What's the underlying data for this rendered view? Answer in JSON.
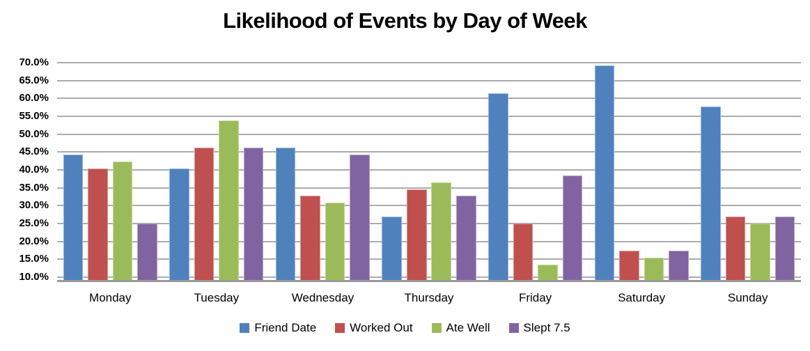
{
  "title": "Likelihood of Events by Day of Week",
  "chart_data": {
    "type": "bar",
    "title": "Likelihood of Events by Day of Week",
    "categories": [
      "Monday",
      "Tuesday",
      "Wednesday",
      "Thursday",
      "Friday",
      "Saturday",
      "Sunday"
    ],
    "series": [
      {
        "name": "Friend Date",
        "color": "#4F81BD",
        "border": "#8EB4E3",
        "values": [
          44.2,
          40.4,
          46.2,
          26.9,
          61.5,
          69.2,
          57.7
        ]
      },
      {
        "name": "Worked Out",
        "color": "#C0504D",
        "border": "#D99694",
        "values": [
          40.4,
          46.2,
          32.7,
          34.6,
          25.0,
          17.3,
          26.9
        ]
      },
      {
        "name": "Ate Well",
        "color": "#9BBB59",
        "border": "#C3D69B",
        "values": [
          42.3,
          53.8,
          30.8,
          36.5,
          13.5,
          15.4,
          25.0
        ]
      },
      {
        "name": "Slept 7.5",
        "color": "#8064A2",
        "border": "#B3A2C7",
        "values": [
          25.0,
          46.2,
          44.2,
          32.7,
          38.5,
          17.3,
          26.9
        ]
      }
    ],
    "xlabel": "",
    "ylabel": "",
    "y_ticks": [
      "70.0%",
      "65.0%",
      "60.0%",
      "55.0%",
      "50.0%",
      "45.0%",
      "40.0%",
      "35.0%",
      "30.0%",
      "25.0%",
      "20.0%",
      "15.0%",
      "10.0%"
    ],
    "y_axis": {
      "min": 10,
      "max": 70,
      "step": 5,
      "unit": "percent"
    },
    "grid": true,
    "legend_position": "bottom",
    "colors": {
      "gridline": "#ABABAB",
      "axis": "#9A9A9A",
      "text": "#000000",
      "background": "#FFFFFF"
    }
  }
}
